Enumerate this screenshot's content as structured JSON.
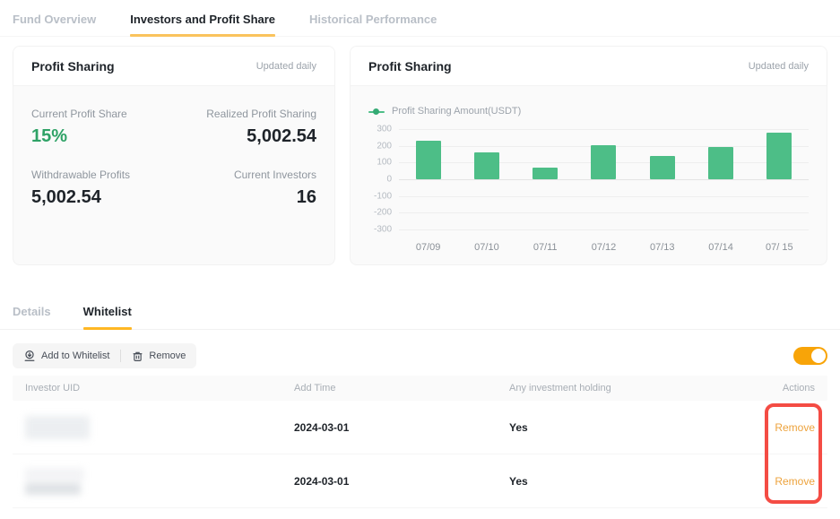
{
  "top_tabs": {
    "items": [
      {
        "label": "Fund Overview",
        "active": false
      },
      {
        "label": "Investors and Profit Share",
        "active": true
      },
      {
        "label": "Historical Performance",
        "active": false
      }
    ]
  },
  "profit_card": {
    "title": "Profit Sharing",
    "updated": "Updated daily",
    "stats": [
      {
        "label": "Current Profit Share",
        "value": "15%",
        "highlight": true
      },
      {
        "label": "Realized Profit Sharing",
        "value": "5,002.54"
      },
      {
        "label": "Withdrawable Profits",
        "value": "5,002.54"
      },
      {
        "label": "Current Investors",
        "value": "16"
      }
    ]
  },
  "chart_card": {
    "title": "Profit Sharing",
    "updated": "Updated daily",
    "legend": "Profit Sharing Amount(USDT)"
  },
  "chart_data": {
    "type": "bar",
    "title": "Profit Sharing",
    "legend": [
      "Profit Sharing Amount(USDT)"
    ],
    "legend_position": "top-left",
    "categories": [
      "07/09",
      "07/10",
      "07/11",
      "07/12",
      "07/13",
      "07/14",
      "07/ 15"
    ],
    "values": [
      230,
      160,
      70,
      205,
      140,
      195,
      280
    ],
    "xlabel": "",
    "ylabel": "",
    "ylim": [
      -300,
      300
    ],
    "yticks": [
      300,
      200,
      100,
      0,
      -100,
      -200,
      -300
    ],
    "grid": true,
    "bar_color": "#4DBE87"
  },
  "section_tabs": {
    "items": [
      {
        "label": "Details",
        "active": false
      },
      {
        "label": "Whitelist",
        "active": true
      }
    ]
  },
  "toolbar": {
    "add_label": "Add to Whitelist",
    "remove_label": "Remove"
  },
  "toggle": {
    "state": "on",
    "color": "#F8A408"
  },
  "table": {
    "headers": [
      "Investor UID",
      "Add Time",
      "Any investment holding",
      "Actions"
    ],
    "rows": [
      {
        "uid": "(redacted)",
        "add_time": "2024-03-01",
        "holding": "Yes",
        "action": "Remove"
      },
      {
        "uid": "(redacted)",
        "add_time": "2024-03-01",
        "holding": "Yes",
        "action": "Remove"
      }
    ]
  },
  "colors": {
    "accent_orange": "#FFB724",
    "link_orange": "#EDA33D",
    "green_value": "#2EA266",
    "bar_green": "#4DBE87",
    "annotation_red": "#F44C44",
    "toggle_orange": "#F8A408"
  }
}
